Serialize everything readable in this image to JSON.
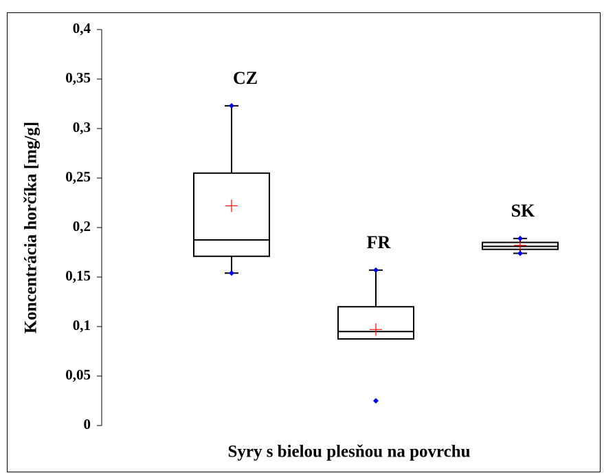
{
  "chart_data": {
    "type": "box",
    "xlabel": "Syry s bielou plesňou na povrchu",
    "ylabel": "Koncentrácia horčíka [mg/g]",
    "ylim": [
      0,
      0.4
    ],
    "yticks": [
      {
        "value": 0,
        "label": "0"
      },
      {
        "value": 0.05,
        "label": "0,05"
      },
      {
        "value": 0.1,
        "label": "0,1"
      },
      {
        "value": 0.15,
        "label": "0,15"
      },
      {
        "value": 0.2,
        "label": "0,2"
      },
      {
        "value": 0.25,
        "label": "0,25"
      },
      {
        "value": 0.3,
        "label": "0,3"
      },
      {
        "value": 0.35,
        "label": "0,35"
      },
      {
        "value": 0.4,
        "label": "0,4"
      }
    ],
    "box_color": "#000000",
    "mean_color": "#ff0000",
    "point_color": "#0000ff",
    "boxes": [
      {
        "name": "CZ",
        "whisker_low": 0.154,
        "q1": 0.171,
        "median": 0.1875,
        "q3": 0.255,
        "whisker_high": 0.323,
        "mean": 0.222,
        "points": [
          0.154,
          0.323
        ]
      },
      {
        "name": "FR",
        "whisker_low": 0.0875,
        "q1": 0.0875,
        "median": 0.095,
        "q3": 0.12,
        "whisker_high": 0.157,
        "mean": 0.097,
        "points": [
          0.025,
          0.157
        ]
      },
      {
        "name": "SK",
        "whisker_low": 0.174,
        "q1": 0.178,
        "median": 0.181,
        "q3": 0.185,
        "whisker_high": 0.189,
        "mean": 0.182,
        "points": [
          0.174,
          0.189
        ]
      }
    ]
  }
}
